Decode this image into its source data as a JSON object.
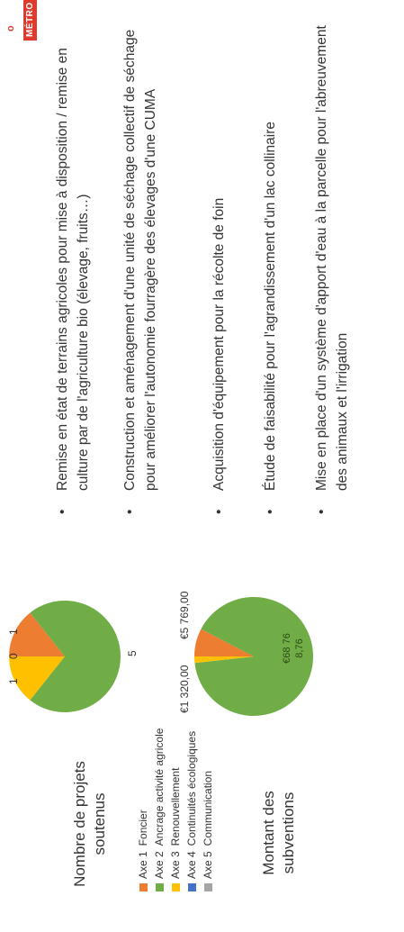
{
  "left_panel": {
    "projects_label": "Nombre de projets soutenus",
    "subsidies_label": "Montant des subventions",
    "legend": [
      {
        "axis": "Axe 1",
        "label": "Foncier",
        "color": "#ed7d31"
      },
      {
        "axis": "Axe 2",
        "label": "Ancrage activité agricole",
        "color": "#70ad47"
      },
      {
        "axis": "Axe 3",
        "label": "Renouvellement",
        "color": "#ffc000"
      },
      {
        "axis": "Axe 4",
        "label": "Continuités écologiques",
        "color": "#4472c4"
      },
      {
        "axis": "Axe 5",
        "label": "Communication",
        "color": "#a5a5a5"
      }
    ]
  },
  "chart_data": [
    {
      "type": "pie",
      "categories": [
        "Axe 1 Foncier",
        "Axe 2 Ancrage activité agricole",
        "Axe 3 Renouvellement",
        "Axe 4 Continuités écologiques",
        "Axe 5 Communication"
      ],
      "values": [
        1,
        5,
        1,
        0,
        0
      ],
      "data_labels": [
        "1",
        "5",
        "1",
        "0",
        "0"
      ],
      "colors": [
        "#ed7d31",
        "#70ad47",
        "#ffc000",
        "#4472c4",
        "#a5a5a5"
      ],
      "title": ""
    },
    {
      "type": "pie",
      "categories": [
        "Axe 1 Foncier",
        "Axe 2 Ancrage activité agricole",
        "Axe 3 Renouvellement",
        "Axe 4 Continuités écologiques",
        "Axe 5 Communication"
      ],
      "values": [
        5769.0,
        68768.76,
        1320.0,
        0,
        0
      ],
      "data_labels": [
        "€5 769,00",
        "€68 76 8,76",
        "€1 320,00",
        "",
        ""
      ],
      "colors": [
        "#ed7d31",
        "#70ad47",
        "#ffc000",
        "#4472c4",
        "#a5a5a5"
      ],
      "title": ""
    }
  ],
  "pie_labels": {
    "p1_label_1": "1",
    "p1_label_0": "0",
    "p1_label_1b": "1",
    "p1_label_5": "5",
    "p2_label_left": "€1 320,00",
    "p2_label_right": "€5 769,00",
    "p2_inner_line1": "€68 76",
    "p2_inner_line2": "8,76"
  },
  "bullets": [
    "Remise en état de terrains agricoles pour mise à disposition / remise en culture par de l'agriculture bio (élevage, fruits…)",
    "Construction et aménagement d'une unité de séchage collectif de séchage pour améliorer l'autonomie fourragère des élevages d'une CUMA",
    "Acquisition d'équipement pour la récolte de foin",
    "Étude de faisabilité pour l'agrandissement d'un lac collinaire",
    "Mise en place d'un système d'apport d'eau à la parcelle pour l'abreuvement des animaux et l'irrigation"
  ],
  "bullet_symbol": "•",
  "badge": {
    "text": "MÉTRO",
    "top": "o"
  }
}
